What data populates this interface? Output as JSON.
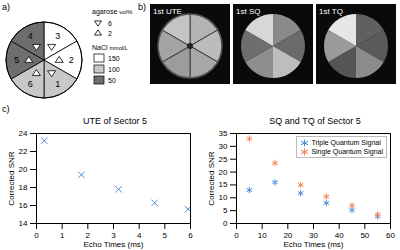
{
  "panel_a": {
    "label": "a)",
    "agarose_legend": {
      "title": "agarose",
      "unit": "vol%",
      "items": [
        {
          "label": "6",
          "marker": "triangle-down"
        },
        {
          "label": "2",
          "marker": "triangle-up"
        }
      ]
    },
    "nacl_legend": {
      "title": "NaCl",
      "unit": "mmol/L",
      "items": [
        {
          "label": "150",
          "color": "#ffffff"
        },
        {
          "label": "100",
          "color": "#c8c8c8"
        },
        {
          "label": "50",
          "color": "#6e6e6e"
        }
      ]
    },
    "sectors": [
      {
        "label": "3",
        "nacl": "150",
        "agarose": "6"
      },
      {
        "label": "2",
        "nacl": "150",
        "agarose": "2"
      },
      {
        "label": "1",
        "nacl": "100",
        "agarose": "6"
      },
      {
        "label": "6",
        "nacl": "100",
        "agarose": "2"
      },
      {
        "label": "5",
        "nacl": "50",
        "agarose": "2"
      },
      {
        "label": "4",
        "nacl": "50",
        "agarose": "6"
      }
    ]
  },
  "panel_b": {
    "label": "b)",
    "images": [
      {
        "title": "1st UTE"
      },
      {
        "title": "1st SQ"
      },
      {
        "title": "1st TQ"
      }
    ]
  },
  "panel_c": {
    "label": "c)"
  },
  "chart_data": [
    {
      "type": "scatter",
      "title": "UTE of Sector 5",
      "x_label": "Echo Times (ms)",
      "y_label": "Corrected SNR",
      "xlim": [
        0,
        6
      ],
      "xticks": [
        0,
        1,
        2,
        3,
        4,
        5,
        6
      ],
      "ylim": [
        14,
        24
      ],
      "yticks": [
        14,
        16,
        18,
        20,
        22,
        24
      ],
      "series": [
        {
          "color": "#4a8fd6",
          "marker": "x",
          "x": [
            0.3,
            1.75,
            3.2,
            4.6,
            5.9
          ],
          "values": [
            23.2,
            19.4,
            17.8,
            16.3,
            15.6
          ]
        }
      ]
    },
    {
      "type": "scatter",
      "title": "SQ and TQ of Sector 5",
      "x_label": "Echo Times (ms)",
      "y_label": "Corrected SNR",
      "xlim": [
        0,
        60
      ],
      "xticks": [
        0,
        10,
        20,
        30,
        40,
        50,
        60
      ],
      "ylim": [
        0,
        35
      ],
      "yticks": [
        0,
        5,
        10,
        15,
        20,
        25,
        30,
        35
      ],
      "legend": "top-right",
      "series": [
        {
          "name": "Triple Quantum Signal",
          "color": "#4a8fd6",
          "marker": "asterisk",
          "x": [
            5,
            15,
            25,
            35,
            45,
            55
          ],
          "values": [
            13,
            16,
            11.8,
            8,
            5.2,
            2.7
          ]
        },
        {
          "name": "Single Quantum Signal",
          "color": "#f0804f",
          "marker": "asterisk",
          "x": [
            5,
            15,
            25,
            35,
            45,
            55
          ],
          "values": [
            33,
            23.5,
            15,
            10.5,
            7,
            3.5
          ]
        }
      ]
    }
  ]
}
